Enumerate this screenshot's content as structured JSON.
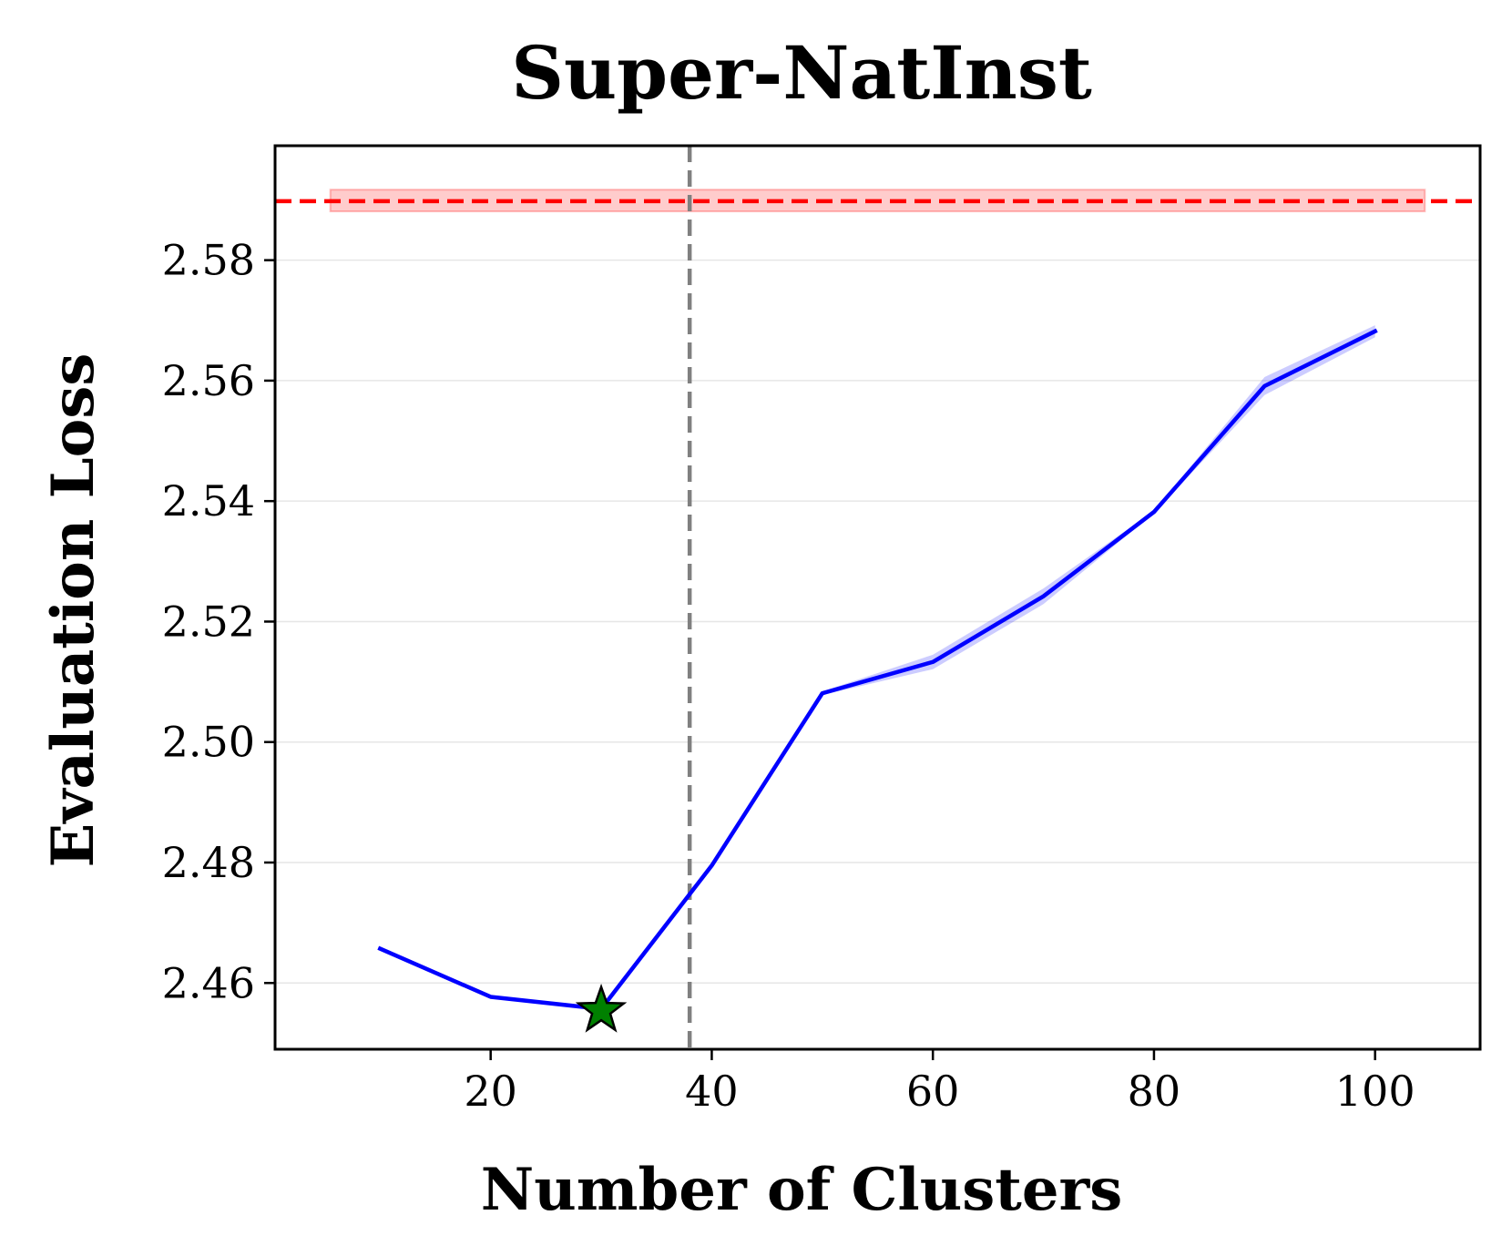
{
  "chart_data": {
    "type": "line",
    "title": "Super-NatInst",
    "xlabel": "Number of Clusters",
    "ylabel": "Evaluation Loss",
    "xlim": [
      0.5,
      109.5
    ],
    "ylim": [
      2.449,
      2.599
    ],
    "xticks": [
      20,
      40,
      60,
      80,
      100
    ],
    "yticks": [
      2.46,
      2.48,
      2.5,
      2.52,
      2.54,
      2.56,
      2.58
    ],
    "ytick_labels": [
      "2.46",
      "2.48",
      "2.50",
      "2.52",
      "2.54",
      "2.56",
      "2.58"
    ],
    "grid": "horizontal",
    "series": [
      {
        "color": "#0000ff",
        "x": [
          10,
          20,
          30,
          40,
          50,
          60,
          70,
          80,
          90,
          100
        ],
        "y": [
          2.4657,
          2.4577,
          2.4557,
          2.4795,
          2.5081,
          2.5133,
          2.5242,
          2.5382,
          2.5591,
          2.5682
        ],
        "band_halfwidth": [
          0.0002,
          0.0002,
          0.0002,
          0.0005,
          0.0003,
          0.0012,
          0.0013,
          0.0002,
          0.0015,
          0.001
        ]
      }
    ],
    "baseline": {
      "y": 2.5898,
      "band": [
        2.5881,
        2.5917
      ],
      "band_x": [
        5.5,
        104.5
      ],
      "color": "#ff0000",
      "style": "dashed"
    },
    "vline": {
      "x": 38,
      "color": "#808080",
      "style": "dashed"
    },
    "marker": {
      "x": 30,
      "y": 2.4554,
      "shape": "star",
      "color": "#008000"
    }
  }
}
